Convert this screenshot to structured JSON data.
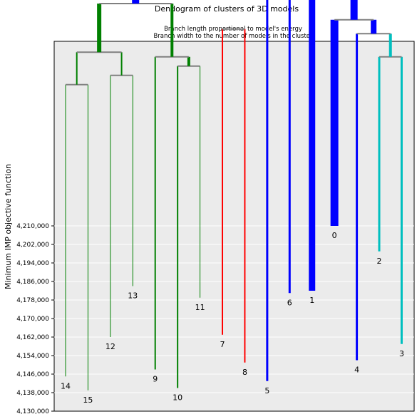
{
  "chart_data": {
    "type": "dendrogram",
    "title": "Dendogram of clusters of 3D models",
    "subtitle_lines": [
      "Branch length proportional to model's energy",
      "Branch width to the number of models in the cluster"
    ],
    "ylabel": "Minimum IMP objective function",
    "ylim": [
      4130000,
      4290000
    ],
    "yticks": [
      4130000,
      4138000,
      4146000,
      4154000,
      4162000,
      4170000,
      4178000,
      4186000,
      4194000,
      4202000,
      4210000
    ],
    "ytick_labels": [
      "4,130,000",
      "4,138,000",
      "4,146,000",
      "4,154,000",
      "4,162,000",
      "4,170,000",
      "4,178,000",
      "4,186,000",
      "4,194,000",
      "4,202,000",
      "4,210,000"
    ],
    "grid": true,
    "background": "#ebebeb",
    "colors": {
      "green": "#008000",
      "red": "#ff0000",
      "blue": "#0000ff",
      "cyan": "#00bfbf",
      "connector": "#808080"
    },
    "leaves": [
      {
        "label": "14",
        "x": 1,
        "y": 4145000,
        "color": "#008000",
        "width": 1
      },
      {
        "label": "15",
        "x": 2,
        "y": 4139000,
        "color": "#008000",
        "width": 1
      },
      {
        "label": "12",
        "x": 3,
        "y": 4162000,
        "color": "#008000",
        "width": 1
      },
      {
        "label": "13",
        "x": 4,
        "y": 4184000,
        "color": "#008000",
        "width": 1
      },
      {
        "label": "9",
        "x": 5,
        "y": 4148000,
        "color": "#008000",
        "width": 2
      },
      {
        "label": "10",
        "x": 6,
        "y": 4140000,
        "color": "#008000",
        "width": 2
      },
      {
        "label": "11",
        "x": 7,
        "y": 4179000,
        "color": "#008000",
        "width": 1
      },
      {
        "label": "7",
        "x": 8,
        "y": 4163000,
        "color": "#ff0000",
        "width": 2
      },
      {
        "label": "8",
        "x": 9,
        "y": 4151000,
        "color": "#ff0000",
        "width": 2
      },
      {
        "label": "5",
        "x": 10,
        "y": 4143000,
        "color": "#0000ff",
        "width": 3
      },
      {
        "label": "6",
        "x": 11,
        "y": 4181000,
        "color": "#0000ff",
        "width": 3
      },
      {
        "label": "1",
        "x": 12,
        "y": 4182000,
        "color": "#0000ff",
        "width": 9
      },
      {
        "label": "0",
        "x": 13,
        "y": 4210000,
        "color": "#0000ff",
        "width": 11
      },
      {
        "label": "4",
        "x": 14,
        "y": 4152000,
        "color": "#0000ff",
        "width": 3
      },
      {
        "label": "2",
        "x": 15,
        "y": 4199000,
        "color": "#00bfbf",
        "width": 3
      },
      {
        "label": "3",
        "x": 16,
        "y": 4159000,
        "color": "#00bfbf",
        "width": 3
      }
    ],
    "merges": [
      {
        "left": 1,
        "right": 2,
        "y": 4271000,
        "color": "#008000",
        "width": 2
      },
      {
        "left": 3,
        "right": 4,
        "y": 4275000,
        "color": "#008000",
        "width": 2
      },
      {
        "left": 6,
        "right": 7,
        "y": 4279000,
        "color": "#008000",
        "width": 4
      },
      {
        "left": 5,
        "right": "c2",
        "y": 4283000,
        "color": "#008000",
        "width": 4
      },
      {
        "left": "c0",
        "right": "c1",
        "y": 4285000,
        "color": "#008000",
        "width": 6
      },
      {
        "left": 8,
        "right": 9,
        "y": 4295000,
        "color": "#ff0000",
        "width": 6
      },
      {
        "left": "c4",
        "right": "c3",
        "y": 4306000,
        "color": "#0000ff",
        "width": 10
      },
      {
        "left": 10,
        "right": 11,
        "y": 4309000,
        "color": "#0000ff",
        "width": 4
      },
      {
        "left": 15,
        "right": 16,
        "y": 4283000,
        "color": "#00bfbf",
        "width": 4
      },
      {
        "left": 14,
        "right": "c8",
        "y": 4293000,
        "color": "#0000ff",
        "width": 8
      },
      {
        "left": 13,
        "right": "c9",
        "y": 4299000,
        "color": "#0000ff",
        "width": 10
      },
      {
        "left": 12,
        "right": "c10",
        "y": 4311000,
        "color": "#0000ff",
        "width": 20
      },
      {
        "left": "c6",
        "right": "c7",
        "y": 4310000,
        "color": "#0000ff",
        "width": 16
      },
      {
        "left": "c12",
        "right": "c11",
        "y": 4324000,
        "color": "#0000ff",
        "width": 26
      }
    ]
  }
}
